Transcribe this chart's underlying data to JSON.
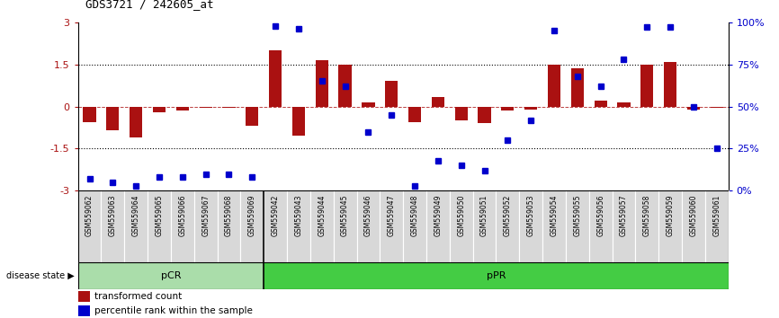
{
  "title": "GDS3721 / 242605_at",
  "samples": [
    "GSM559062",
    "GSM559063",
    "GSM559064",
    "GSM559065",
    "GSM559066",
    "GSM559067",
    "GSM559068",
    "GSM559069",
    "GSM559042",
    "GSM559043",
    "GSM559044",
    "GSM559045",
    "GSM559046",
    "GSM559047",
    "GSM559048",
    "GSM559049",
    "GSM559050",
    "GSM559051",
    "GSM559052",
    "GSM559053",
    "GSM559054",
    "GSM559055",
    "GSM559056",
    "GSM559057",
    "GSM559058",
    "GSM559059",
    "GSM559060",
    "GSM559061"
  ],
  "bar_values": [
    -0.55,
    -0.85,
    -1.1,
    -0.2,
    -0.15,
    -0.05,
    -0.05,
    -0.7,
    2.0,
    -1.05,
    1.65,
    1.5,
    0.15,
    0.9,
    -0.55,
    0.35,
    -0.5,
    -0.6,
    -0.15,
    -0.1,
    1.5,
    1.35,
    0.2,
    0.15,
    1.5,
    1.6,
    -0.1,
    -0.05
  ],
  "percentile_values": [
    7,
    5,
    3,
    8,
    8,
    10,
    10,
    8,
    98,
    96,
    65,
    62,
    35,
    45,
    3,
    18,
    15,
    12,
    30,
    42,
    95,
    68,
    62,
    78,
    97,
    97,
    50,
    25
  ],
  "pCR_count": 8,
  "pPR_count": 20,
  "bar_color": "#AA1111",
  "dot_color": "#0000CC",
  "bg_pCR": "#AADDAA",
  "bg_pPR": "#44CC44",
  "label_pCR": "pCR",
  "label_pPR": "pPR",
  "disease_state_label": "disease state",
  "legend_bar": "transformed count",
  "legend_dot": "percentile rank within the sample",
  "right_axis_ticks": [
    0,
    25,
    50,
    75,
    100
  ],
  "right_axis_labels": [
    "0%",
    "25%",
    "50%",
    "75%",
    "100%"
  ]
}
